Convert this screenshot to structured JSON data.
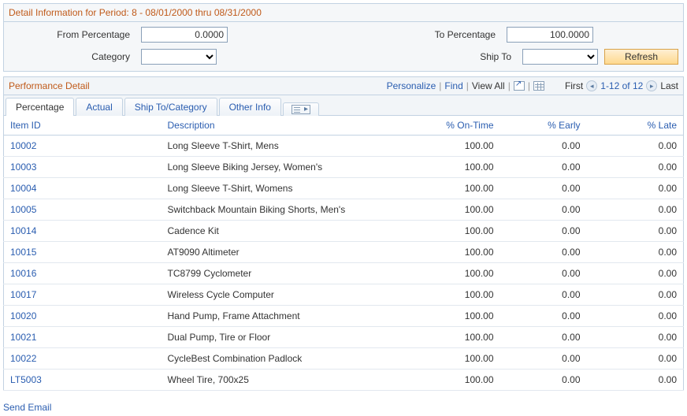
{
  "header": {
    "title": "Detail Information for Period: 8 - 08/01/2000 thru 08/31/2000",
    "from_pct_label": "From Percentage",
    "from_pct_value": "0.0000",
    "to_pct_label": "To Percentage",
    "to_pct_value": "100.0000",
    "category_label": "Category",
    "shipto_label": "Ship To",
    "refresh_label": "Refresh"
  },
  "grid": {
    "title": "Performance Detail",
    "tools": {
      "personalize": "Personalize",
      "find": "Find",
      "view_all": "View All",
      "first": "First",
      "range": "1-12 of 12",
      "last": "Last"
    },
    "tabs": [
      "Percentage",
      "Actual",
      "Ship To/Category",
      "Other Info"
    ],
    "active_tab": 0,
    "columns": [
      "Item ID",
      "Description",
      "% On-Time",
      "% Early",
      "% Late"
    ],
    "rows": [
      {
        "id": "10002",
        "desc": "Long Sleeve T-Shirt, Mens",
        "ontime": "100.00",
        "early": "0.00",
        "late": "0.00"
      },
      {
        "id": "10003",
        "desc": "Long Sleeve Biking Jersey, Women's",
        "ontime": "100.00",
        "early": "0.00",
        "late": "0.00"
      },
      {
        "id": "10004",
        "desc": "Long Sleeve T-Shirt, Womens",
        "ontime": "100.00",
        "early": "0.00",
        "late": "0.00"
      },
      {
        "id": "10005",
        "desc": "Switchback Mountain Biking Shorts, Men's",
        "ontime": "100.00",
        "early": "0.00",
        "late": "0.00"
      },
      {
        "id": "10014",
        "desc": "Cadence Kit",
        "ontime": "100.00",
        "early": "0.00",
        "late": "0.00"
      },
      {
        "id": "10015",
        "desc": "AT9090 Altimeter",
        "ontime": "100.00",
        "early": "0.00",
        "late": "0.00"
      },
      {
        "id": "10016",
        "desc": "TC8799 Cyclometer",
        "ontime": "100.00",
        "early": "0.00",
        "late": "0.00"
      },
      {
        "id": "10017",
        "desc": "Wireless Cycle Computer",
        "ontime": "100.00",
        "early": "0.00",
        "late": "0.00"
      },
      {
        "id": "10020",
        "desc": "Hand Pump, Frame Attachment",
        "ontime": "100.00",
        "early": "0.00",
        "late": "0.00"
      },
      {
        "id": "10021",
        "desc": "Dual Pump, Tire or Floor",
        "ontime": "100.00",
        "early": "0.00",
        "late": "0.00"
      },
      {
        "id": "10022",
        "desc": "CycleBest Combination Padlock",
        "ontime": "100.00",
        "early": "0.00",
        "late": "0.00"
      },
      {
        "id": "LT5003",
        "desc": "Wheel Tire, 700x25",
        "ontime": "100.00",
        "early": "0.00",
        "late": "0.00"
      }
    ]
  },
  "footer": {
    "send_email": "Send Email"
  }
}
